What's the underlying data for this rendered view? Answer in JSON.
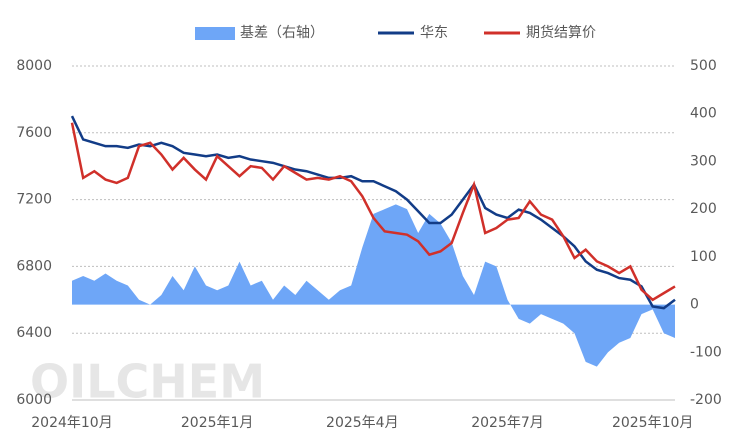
{
  "chart_data": {
    "type": "combo",
    "watermark": "OILCHEM",
    "categories": [
      "2024年10月",
      null,
      null,
      null,
      null,
      null,
      null,
      null,
      null,
      null,
      null,
      null,
      null,
      "2025年1月",
      null,
      null,
      null,
      null,
      null,
      null,
      null,
      null,
      null,
      null,
      null,
      null,
      "2025年4月",
      null,
      null,
      null,
      null,
      null,
      null,
      null,
      null,
      null,
      null,
      null,
      null,
      "2025年7月",
      null,
      null,
      null,
      null,
      null,
      null,
      null,
      null,
      null,
      null,
      null,
      null,
      "2025年10月",
      null,
      null
    ],
    "series": [
      {
        "name": "基差（右轴）",
        "type": "area",
        "axis": "y2",
        "color": "#6ea6f7",
        "values": [
          50,
          60,
          50,
          65,
          50,
          40,
          10,
          0,
          20,
          60,
          30,
          80,
          40,
          30,
          40,
          90,
          40,
          50,
          10,
          40,
          20,
          50,
          30,
          10,
          30,
          40,
          120,
          190,
          200,
          210,
          200,
          150,
          190,
          170,
          130,
          60,
          20,
          90,
          80,
          10,
          -30,
          -40,
          -20,
          -30,
          -40,
          -60,
          -120,
          -130,
          -100,
          -80,
          -70,
          -20,
          -10,
          -60,
          -70
        ]
      },
      {
        "name": "华东",
        "type": "line",
        "color": "#123c87",
        "values": [
          7700,
          7560,
          7540,
          7520,
          7520,
          7510,
          7530,
          7520,
          7540,
          7520,
          7480,
          7470,
          7460,
          7470,
          7450,
          7460,
          7440,
          7430,
          7420,
          7400,
          7380,
          7370,
          7350,
          7330,
          7330,
          7340,
          7310,
          7310,
          7280,
          7250,
          7200,
          7130,
          7060,
          7060,
          7110,
          7200,
          7290,
          7150,
          7110,
          7090,
          7140,
          7120,
          7080,
          7030,
          6980,
          6920,
          6830,
          6780,
          6760,
          6730,
          6720,
          6680,
          6560,
          6550,
          6600
        ]
      },
      {
        "name": "期货结算价",
        "type": "line",
        "color": "#d0302a",
        "values": [
          7660,
          7330,
          7370,
          7320,
          7300,
          7330,
          7520,
          7540,
          7470,
          7380,
          7450,
          7380,
          7320,
          7460,
          7400,
          7340,
          7400,
          7390,
          7320,
          7400,
          7360,
          7320,
          7330,
          7320,
          7340,
          7310,
          7220,
          7090,
          7010,
          7000,
          6990,
          6950,
          6870,
          6890,
          6940,
          7120,
          7290,
          7000,
          7030,
          7080,
          7090,
          7190,
          7110,
          7080,
          6980,
          6850,
          6900,
          6830,
          6800,
          6760,
          6800,
          6660,
          6600,
          6640,
          6680
        ]
      }
    ],
    "ylim": [
      6000,
      8000
    ],
    "yticks": [
      6000,
      6400,
      6800,
      7200,
      7600,
      8000
    ],
    "y2lim": [
      -200,
      500
    ],
    "y2ticks": [
      -200,
      -100,
      0,
      100,
      200,
      300,
      400,
      500
    ],
    "grid": true,
    "legend": "top"
  }
}
